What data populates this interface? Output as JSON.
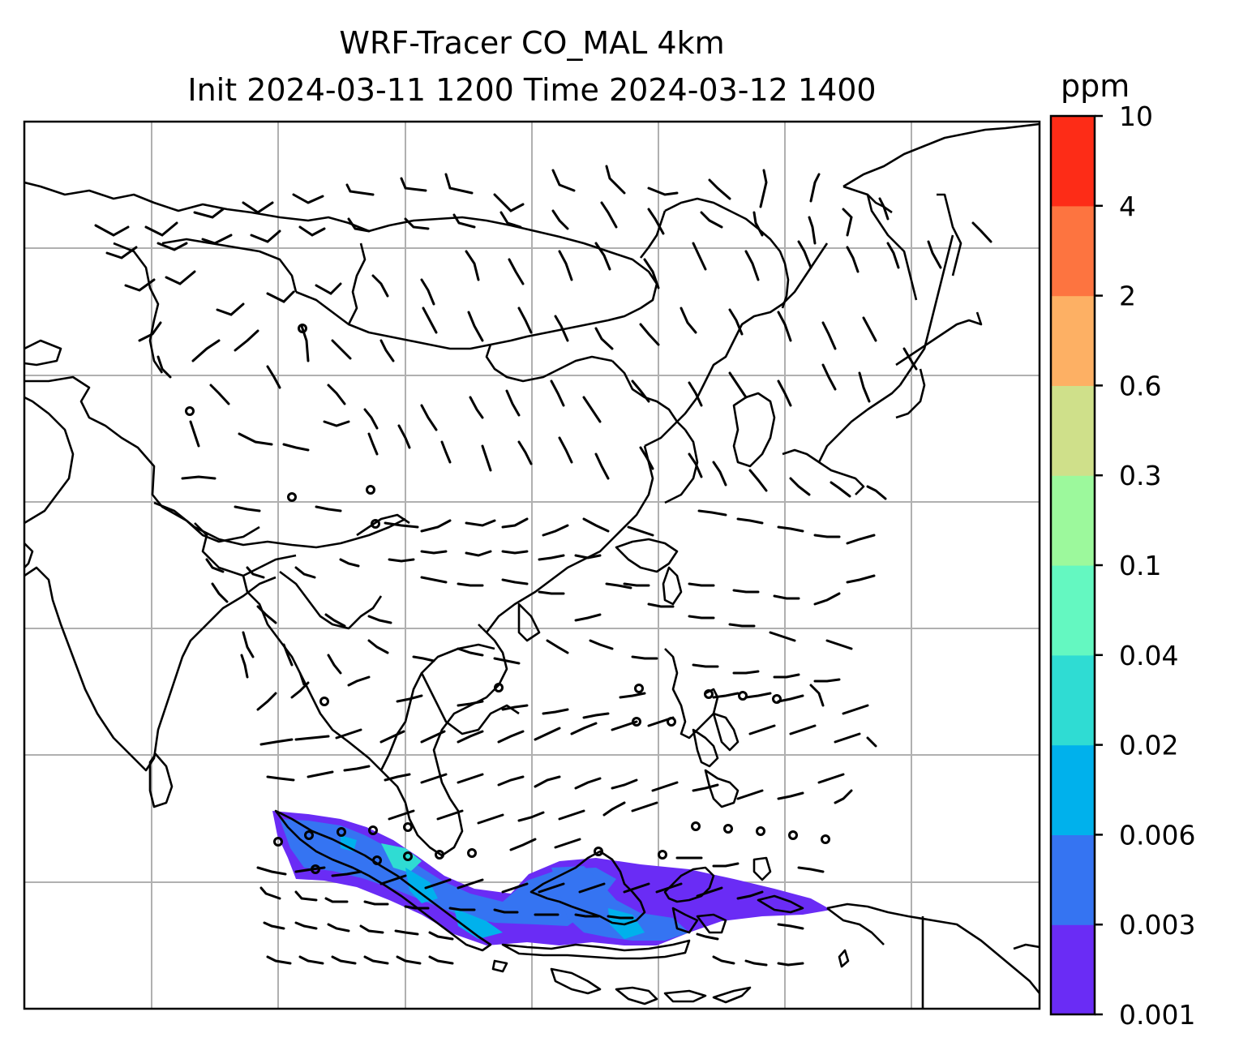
{
  "title": {
    "line1": "WRF-Tracer CO_MAL 4km",
    "line2": "Init 2024-03-11 1200 Time 2024-03-12 1400"
  },
  "colorbar": {
    "unit": "ppm",
    "levels": [
      "0.001",
      "0.003",
      "0.006",
      "0.02",
      "0.04",
      "0.1",
      "0.3",
      "0.6",
      "2",
      "4",
      "10"
    ],
    "colors": [
      "#6a2cf5",
      "#3574f2",
      "#00b1ec",
      "#2fdcd3",
      "#64f8c1",
      "#9cf99c",
      "#cfe08a",
      "#fdb064",
      "#fd7440",
      "#fd2c17"
    ]
  },
  "map": {
    "tracer_fill_colors": [
      "#6a2cf5",
      "#3574f2",
      "#00b1ec",
      "#2fdcd3"
    ],
    "coastline_color": "#000000",
    "gridline_color": "#b0b0b0"
  }
}
